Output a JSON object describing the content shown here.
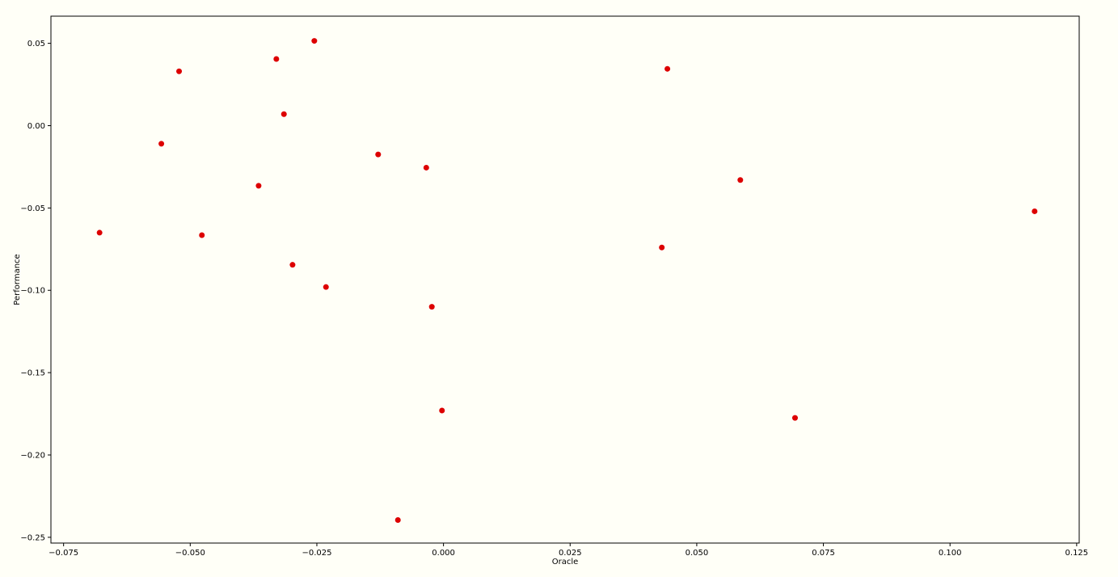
{
  "chart_data": {
    "type": "scatter",
    "title": "",
    "xlabel": "Oracle",
    "ylabel": "Performance",
    "xlim": [
      -0.0775,
      0.1255
    ],
    "ylim": [
      -0.2535,
      0.0665
    ],
    "xticks": [
      -0.075,
      -0.05,
      -0.025,
      0.0,
      0.025,
      0.05,
      0.075,
      0.1,
      0.125
    ],
    "xtick_labels": [
      "−0.075",
      "−0.050",
      "−0.025",
      "0.000",
      "0.025",
      "0.050",
      "0.075",
      "0.100",
      "0.125"
    ],
    "yticks": [
      0.05,
      0.0,
      -0.05,
      -0.1,
      -0.15,
      -0.2,
      -0.25
    ],
    "ytick_labels": [
      "0.05",
      "0.00",
      "−0.05",
      "−0.10",
      "−0.15",
      "−0.20",
      "−0.25"
    ],
    "grid": false,
    "legend": "none",
    "marker_color": "#dd0000",
    "points": [
      {
        "x": -0.0255,
        "y": 0.0515
      },
      {
        "x": -0.033,
        "y": 0.0405
      },
      {
        "x": -0.0522,
        "y": 0.033
      },
      {
        "x": 0.0442,
        "y": 0.0345
      },
      {
        "x": -0.0315,
        "y": 0.007
      },
      {
        "x": -0.0557,
        "y": -0.011
      },
      {
        "x": -0.0129,
        "y": -0.0175
      },
      {
        "x": -0.0034,
        "y": -0.0255
      },
      {
        "x": 0.0586,
        "y": -0.033
      },
      {
        "x": -0.0365,
        "y": -0.0365
      },
      {
        "x": 0.1167,
        "y": -0.052
      },
      {
        "x": -0.0679,
        "y": -0.065
      },
      {
        "x": -0.0477,
        "y": -0.0665
      },
      {
        "x": 0.0431,
        "y": -0.074
      },
      {
        "x": -0.0298,
        "y": -0.0845
      },
      {
        "x": -0.0232,
        "y": -0.098
      },
      {
        "x": -0.0023,
        "y": -0.11
      },
      {
        "x": -0.0003,
        "y": -0.173
      },
      {
        "x": 0.0694,
        "y": -0.1775
      },
      {
        "x": -0.009,
        "y": -0.2395
      }
    ]
  }
}
